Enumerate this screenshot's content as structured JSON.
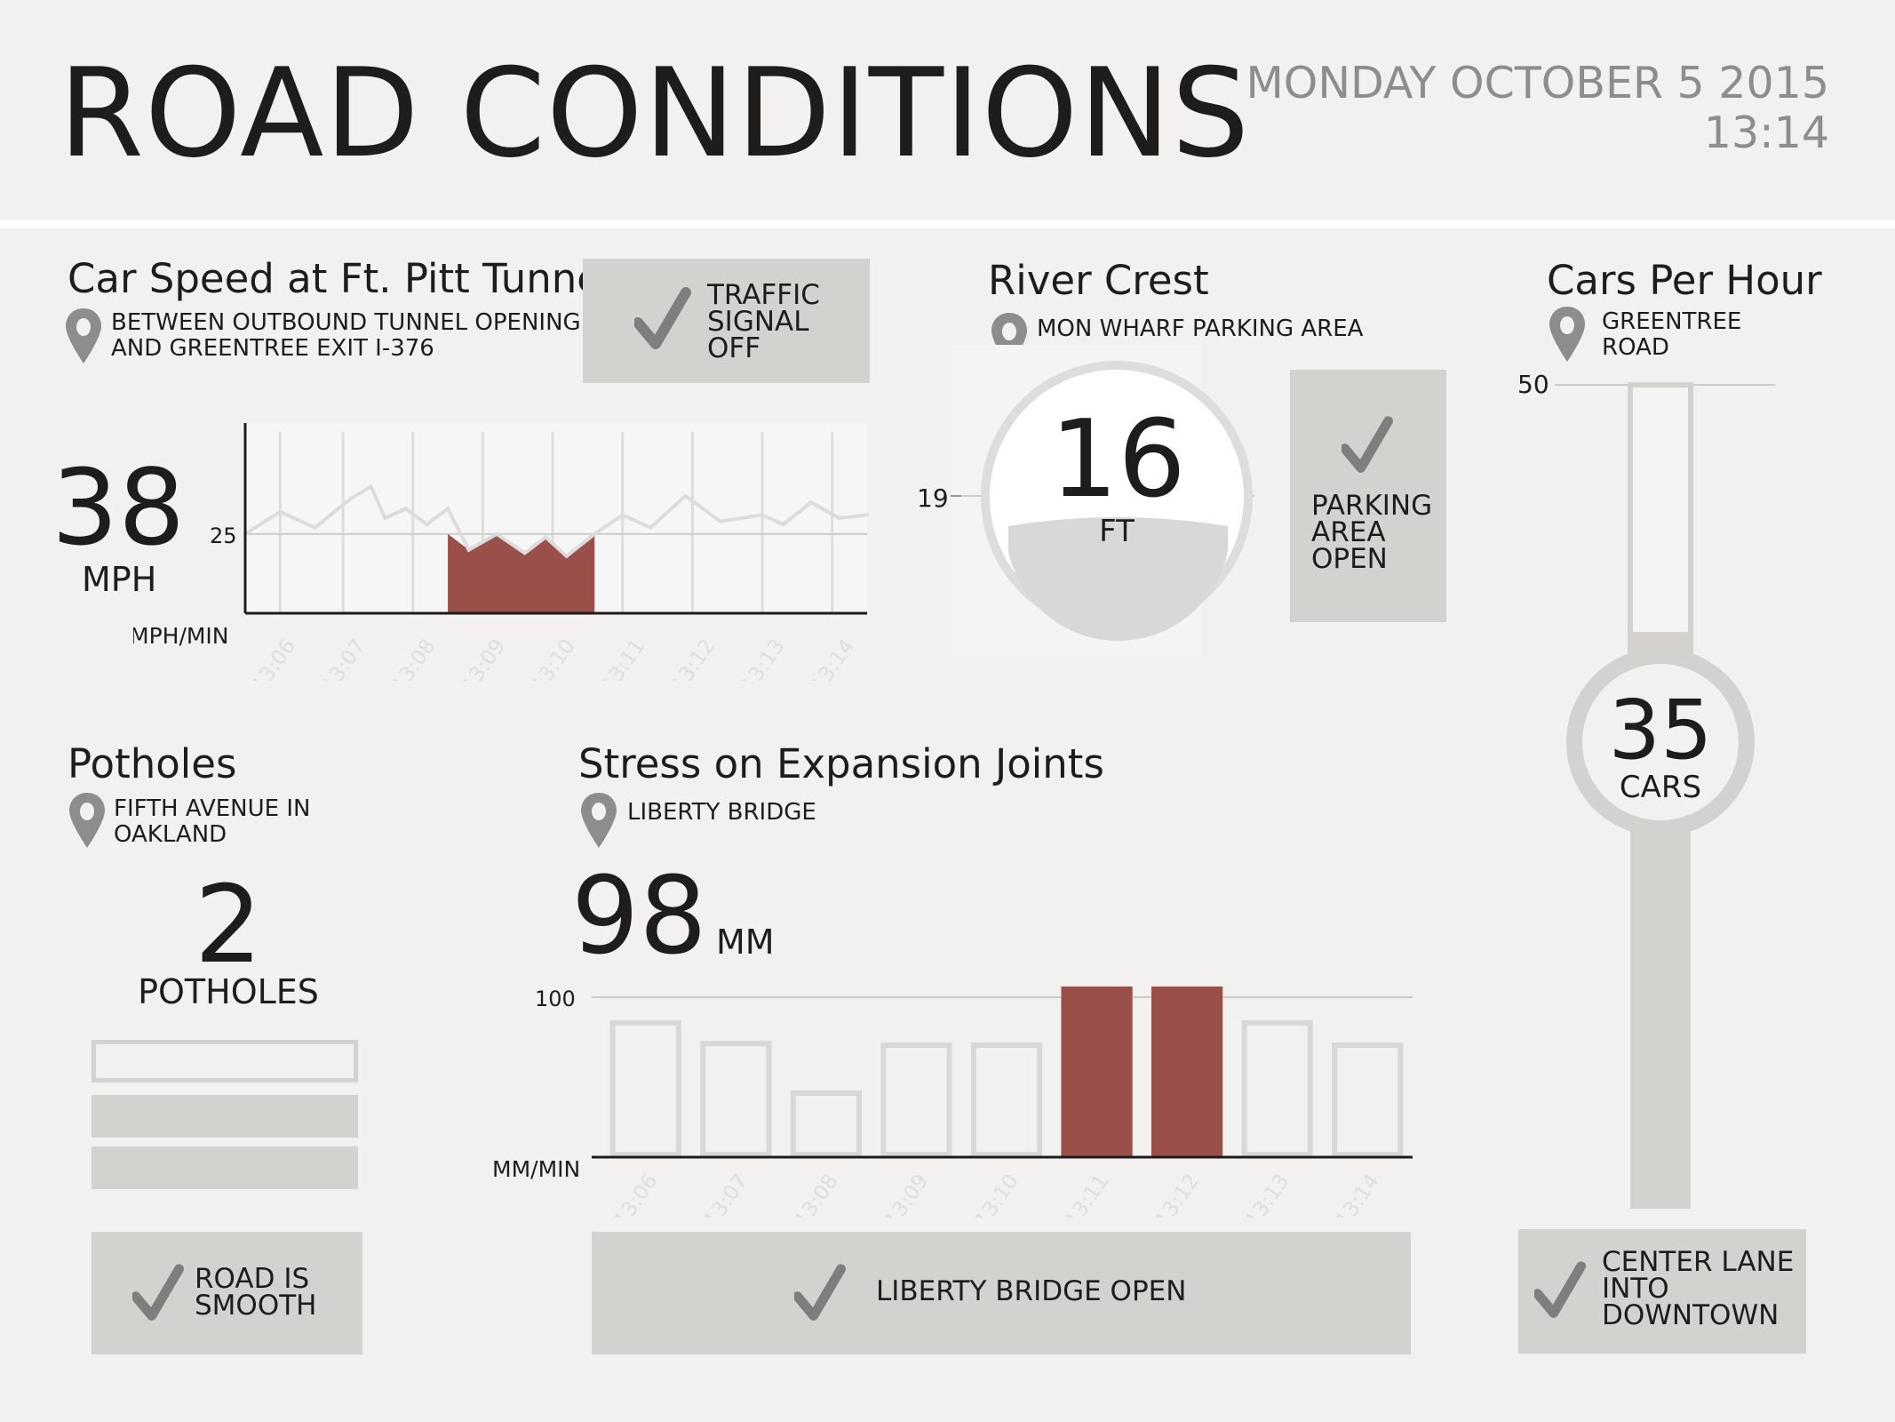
{
  "header": {
    "title": "ROAD CONDITIONS",
    "date": "MONDAY OCTOBER 5 2015",
    "time": "13:14"
  },
  "car_speed": {
    "title": "Car Speed at Ft. Pitt Tunnel",
    "location_line1": "BETWEEN OUTBOUND TUNNEL OPENING",
    "location_line2": "AND GREENTREE EXIT I-376",
    "value": "38",
    "unit": "MPH",
    "status_lines": [
      "TRAFFIC",
      "SIGNAL",
      "OFF"
    ]
  },
  "river_crest": {
    "title": "River Crest",
    "location": "MON WHARF PARKING AREA",
    "value": "16",
    "unit": "FT",
    "threshold_label": "19",
    "status_lines": [
      "PARKING",
      "AREA",
      "OPEN"
    ]
  },
  "cars_per_hour": {
    "title": "Cars Per Hour",
    "location_line1": "GREENTREE",
    "location_line2": "ROAD",
    "max_label": "50",
    "value": "35",
    "unit": "CARS",
    "level": 0.7,
    "status_lines": [
      "CENTER LANE",
      "INTO",
      "DOWNTOWN"
    ]
  },
  "potholes": {
    "title": "Potholes",
    "location_line1": "FIFTH AVENUE IN",
    "location_line2": "OAKLAND",
    "value": "2",
    "unit": "POTHOLES",
    "level_filled": 2,
    "level_total": 3,
    "status_lines": [
      "ROAD IS",
      "SMOOTH"
    ]
  },
  "expansion_joints": {
    "title": "Stress on Expansion Joints",
    "location": "LIBERTY BRIDGE",
    "value": "98",
    "unit": "MM",
    "status": "LIBERTY BRIDGE OPEN"
  },
  "colors": {
    "alert": "#9a4f4a",
    "panel": "#d3d2ce",
    "background": "#f2f1ef",
    "line": "#d7d7d7",
    "text": "#1d1d1d",
    "muted": "#8d8d8d"
  },
  "chart_data": [
    {
      "type": "line",
      "name": "speed-chart",
      "ylabel": "MPH/MIN",
      "threshold": 25,
      "threshold_label": "25",
      "ylim": [
        0,
        60
      ],
      "x_ticks": [
        "13:06",
        "13:07",
        "13:08",
        "13:09",
        "13:10",
        "13:11",
        "13:12",
        "13:13",
        "13:14"
      ],
      "x": [
        0,
        0.5,
        1,
        1.5,
        1.8,
        2.0,
        2.3,
        2.6,
        2.9,
        3.2,
        3.6,
        4.0,
        4.3,
        4.6,
        5.0,
        5.4,
        5.8,
        6.3,
        6.8,
        7.1,
        7.4,
        7.7,
        8.1,
        8.5,
        8.9
      ],
      "values": [
        25,
        32,
        27,
        36,
        40,
        30,
        33,
        28,
        33,
        20,
        25,
        19,
        24,
        18,
        25,
        31,
        27,
        37,
        29,
        30,
        31,
        28,
        35,
        30,
        31
      ]
    },
    {
      "type": "bar",
      "name": "stress-chart",
      "ylabel": "MM/MIN",
      "threshold": 100,
      "threshold_label": "100",
      "ylim": [
        0,
        120
      ],
      "categories": [
        "13:06",
        "13:07",
        "13:08",
        "13:09",
        "13:10",
        "13:11",
        "13:12",
        "13:13",
        "13:14"
      ],
      "values": [
        84,
        71,
        40,
        70,
        70,
        111,
        124,
        84,
        70
      ],
      "alert": [
        false,
        false,
        false,
        false,
        false,
        true,
        true,
        false,
        false
      ]
    }
  ]
}
